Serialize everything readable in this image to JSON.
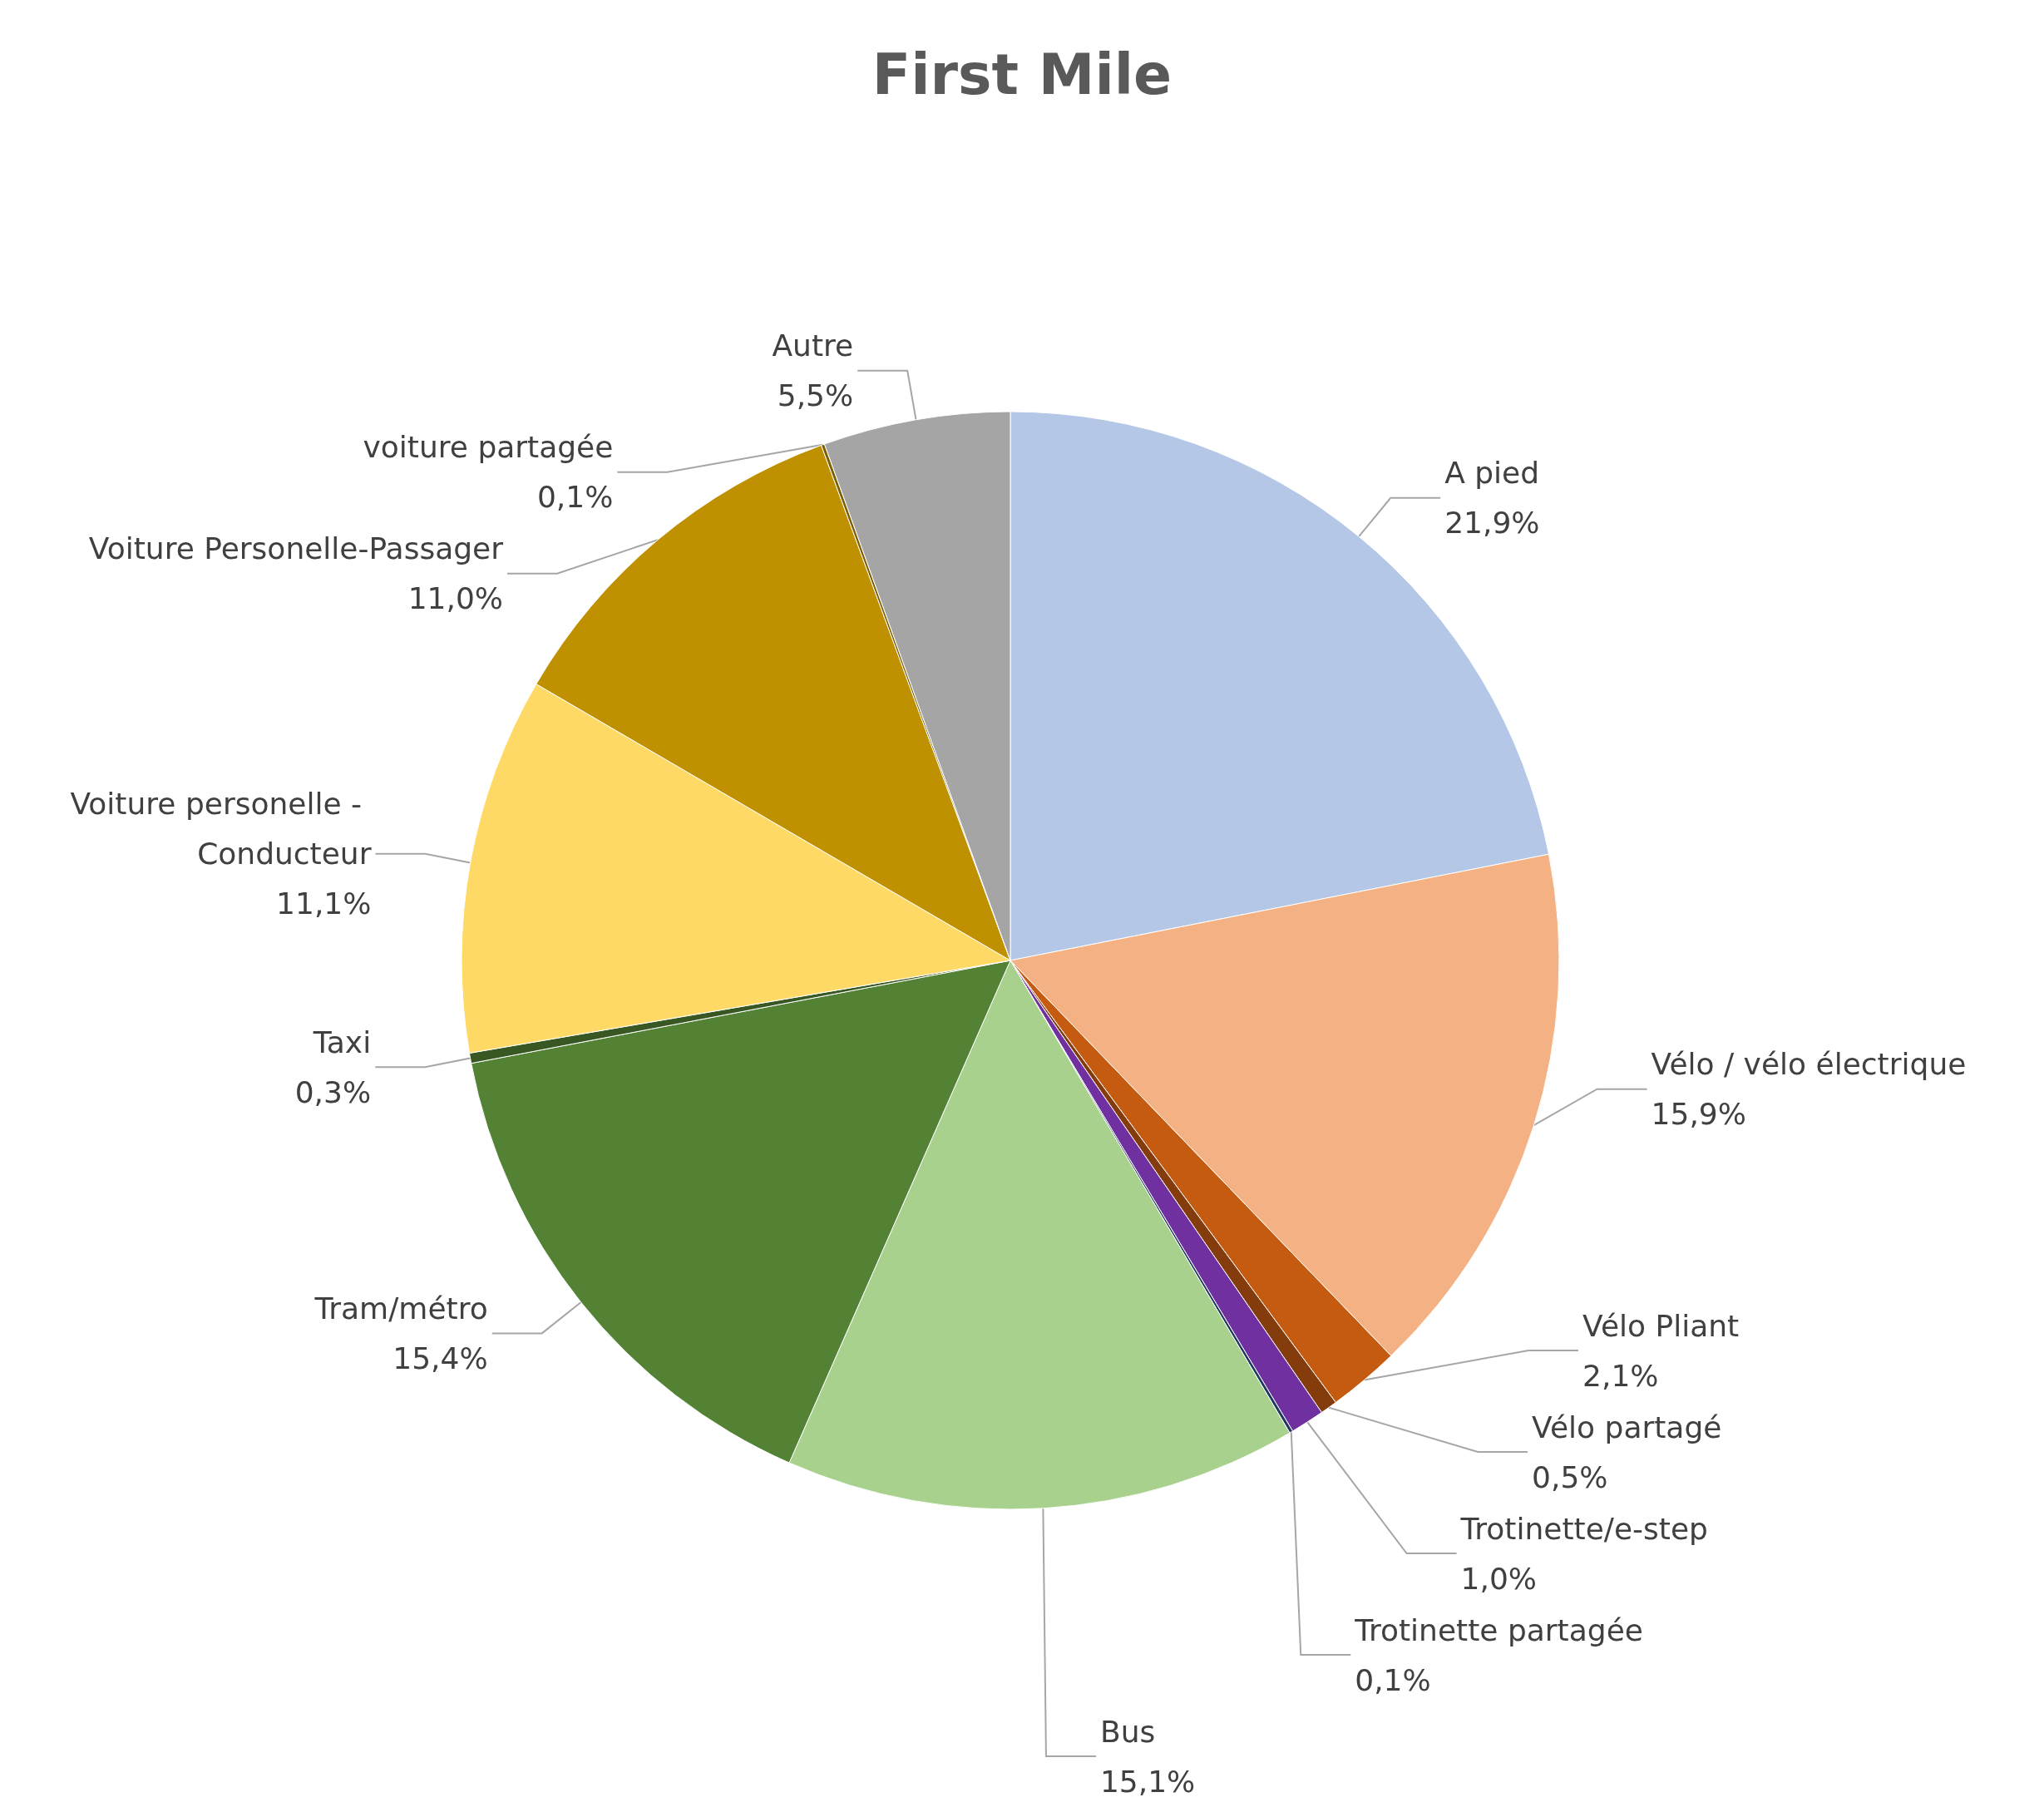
{
  "chart_data": {
    "type": "pie",
    "title": "First Mile",
    "categories": [
      "A pied",
      "Vélo / vélo électrique",
      "Vélo Pliant",
      "Vélo partagé",
      "Trotinette/e-step",
      "Trotinette partagée",
      "Bus",
      "Tram/métro",
      "Taxi",
      "Voiture personelle - Conducteur",
      "Voiture Personelle-Passager",
      "voiture partagée",
      "Autre"
    ],
    "values": [
      21.9,
      15.9,
      2.1,
      0.5,
      1.0,
      0.1,
      15.1,
      15.4,
      0.3,
      11.1,
      11.0,
      0.1,
      5.5
    ],
    "colors": [
      "#b4c7e7",
      "#f4b183",
      "#c55a11",
      "#843c0c",
      "#7030a0",
      "#203864",
      "#a9d18e",
      "#548235",
      "#385723",
      "#ffd966",
      "#bf9000",
      "#7f6000",
      "#a5a5a5"
    ],
    "value_labels": [
      "21,9%",
      "15,9%",
      "2,1%",
      "0,5%",
      "1,0%",
      "0,1%",
      "15,1%",
      "15,4%",
      "0,3%",
      "11,1%",
      "11,0%",
      "0,1%",
      "5,5%"
    ],
    "legend": false
  }
}
